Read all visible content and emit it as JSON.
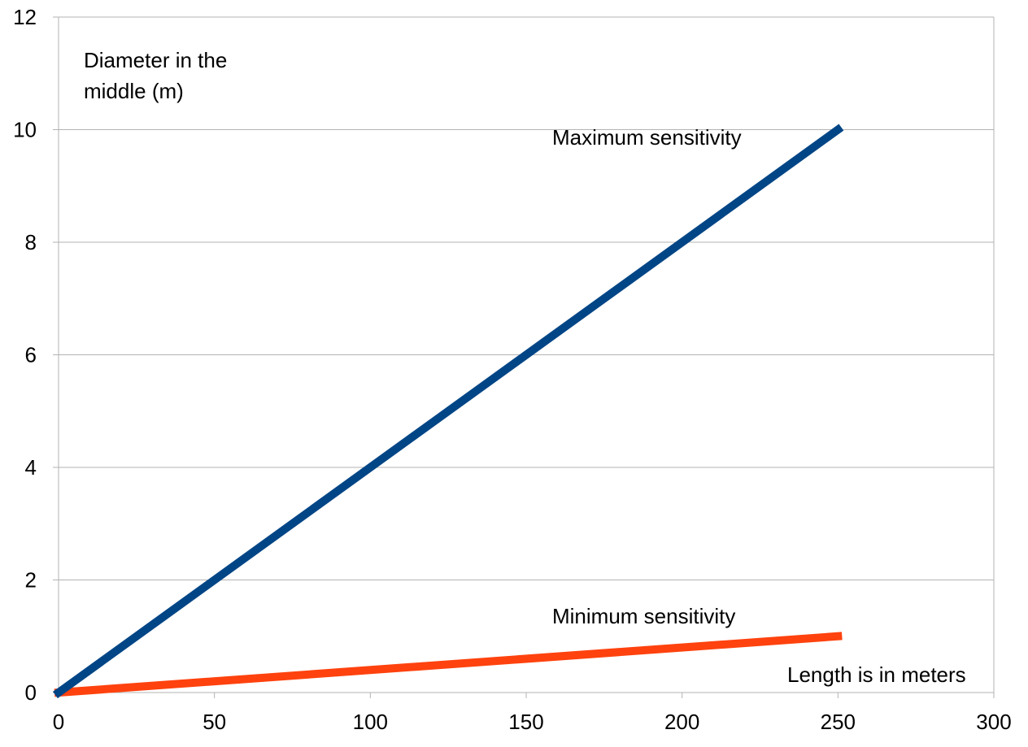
{
  "chart_data": {
    "type": "line",
    "title": "",
    "ylabel_lines": [
      "Diameter in the",
      "middle (m)"
    ],
    "xlabel": "Length is in meters",
    "xlim": [
      0,
      300
    ],
    "ylim": [
      0,
      12
    ],
    "x_ticks": [
      "0",
      "50",
      "100",
      "150",
      "200",
      "250",
      "300"
    ],
    "y_ticks": [
      "0",
      "2",
      "4",
      "6",
      "8",
      "10",
      "12"
    ],
    "grid": "horizontal",
    "series": [
      {
        "name": "Maximum sensitivity",
        "color": "#004586",
        "points": [
          [
            0,
            0
          ],
          [
            250,
            10
          ]
        ]
      },
      {
        "name": "Minimum sensitivity",
        "color": "#ff420e",
        "points": [
          [
            0,
            0
          ],
          [
            250,
            1
          ]
        ]
      }
    ]
  }
}
